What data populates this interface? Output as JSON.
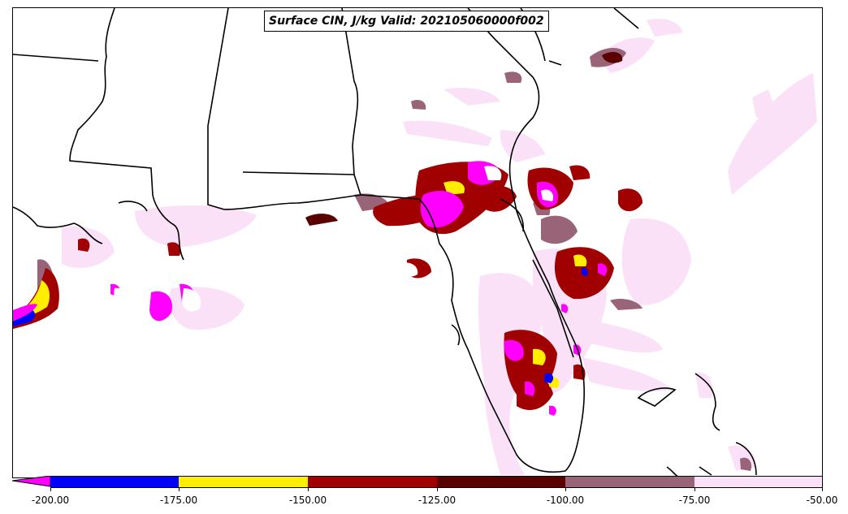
{
  "title": "Surface CIN, J/kg Valid: 202105060000f002",
  "colorbar": {
    "ticks": [
      "-200.00",
      "-175.00",
      "-150.00",
      "-125.00",
      "-100.00",
      "-75.00",
      "-50.00"
    ],
    "colors": [
      "#ff00ff",
      "#0000ff",
      "#ffee00",
      "#a00000",
      "#5a0000",
      "#9a6478",
      "#fbe1f7"
    ],
    "extend": "min"
  },
  "map": {
    "region": "Southeast United States / Gulf of Mexico",
    "state_line_color": "#000000",
    "fill_colors": {
      "very_light": "#fbe1f7",
      "mauve": "#9a6478",
      "dark_red": "#5a0000",
      "red": "#a00000",
      "yellow": "#ffee00",
      "blue": "#0000ff",
      "magenta": "#ff00ff"
    }
  }
}
